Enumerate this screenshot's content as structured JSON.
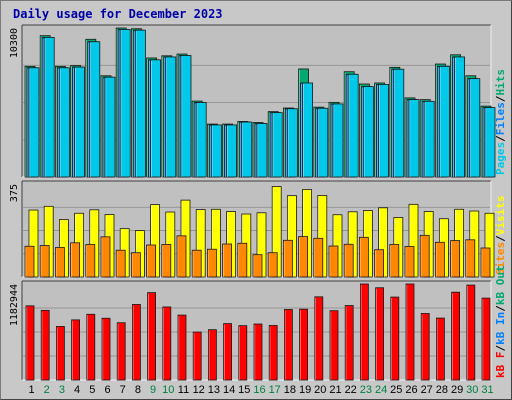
{
  "title": "Daily usage for December 2023",
  "colors": {
    "pages": "#00c8e8",
    "files": "#0080ff",
    "hits": "#00a870",
    "visits": "#ffff00",
    "sites": "#ff8800",
    "kbytes": "#ff0000",
    "weekday_label": "#000000",
    "weekend_label": "#008040",
    "panel_bg": "#c0c0c0"
  },
  "chart_data": [
    {
      "type": "bar",
      "panel": "hits-files-pages",
      "x": [
        "1",
        "2",
        "3",
        "4",
        "5",
        "6",
        "7",
        "8",
        "9",
        "10",
        "11",
        "12",
        "13",
        "14",
        "15",
        "16",
        "17",
        "18",
        "19",
        "20",
        "21",
        "22",
        "23",
        "24",
        "25",
        "26",
        "27",
        "28",
        "29",
        "30",
        "31"
      ],
      "tick_label": "10300",
      "ylim": [
        0,
        10300
      ],
      "legend": [
        "Pages",
        "/",
        "Files",
        "/",
        "Hits"
      ],
      "series": [
        {
          "name": "Hits",
          "values": [
            7650,
            9770,
            7650,
            7700,
            9520,
            7000,
            10300,
            10250,
            8230,
            8380,
            8500,
            5250,
            3660,
            3660,
            3840,
            3770,
            4520,
            4770,
            7470,
            4830,
            5160,
            7280,
            6430,
            6500,
            7580,
            5470,
            5350,
            7810,
            8450,
            7000,
            4900
          ]
        },
        {
          "name": "Files",
          "values": [
            7550,
            9650,
            7550,
            7600,
            9350,
            6900,
            10200,
            10150,
            8100,
            8300,
            8400,
            5150,
            3600,
            3600,
            3800,
            3700,
            4450,
            4720,
            6500,
            4750,
            5050,
            7100,
            6250,
            6400,
            7450,
            5350,
            5230,
            7650,
            8300,
            6800,
            4800
          ]
        },
        {
          "name": "Pages",
          "values": [
            7550,
            9650,
            7550,
            7600,
            9350,
            6900,
            10200,
            10150,
            8100,
            8300,
            8400,
            5150,
            3600,
            3600,
            3800,
            3700,
            4450,
            4720,
            6500,
            4750,
            5050,
            7100,
            6250,
            6400,
            7450,
            5350,
            5230,
            7650,
            8300,
            6800,
            4800
          ]
        }
      ]
    },
    {
      "type": "bar",
      "panel": "visits-sites",
      "x": [
        "1",
        "2",
        "3",
        "4",
        "5",
        "6",
        "7",
        "8",
        "9",
        "10",
        "11",
        "12",
        "13",
        "14",
        "15",
        "16",
        "17",
        "18",
        "19",
        "20",
        "21",
        "22",
        "23",
        "24",
        "25",
        "26",
        "27",
        "28",
        "29",
        "30",
        "31"
      ],
      "tick_label": "375",
      "ylim": [
        0,
        375
      ],
      "legend": [
        "Sites",
        "/",
        "Visits"
      ],
      "series": [
        {
          "name": "Visits",
          "values": [
            270,
            285,
            232,
            257,
            271,
            252,
            195,
            187,
            292,
            262,
            310,
            272,
            273,
            264,
            254,
            259,
            365,
            328,
            353,
            329,
            251,
            263,
            268,
            279,
            240,
            293,
            264,
            235,
            273,
            266,
            257
          ]
        },
        {
          "name": "Sites",
          "values": [
            124,
            127,
            119,
            138,
            131,
            162,
            108,
            98,
            129,
            131,
            166,
            108,
            112,
            133,
            136,
            90,
            98,
            148,
            163,
            156,
            125,
            132,
            160,
            110,
            131,
            123,
            168,
            140,
            147,
            150,
            117
          ]
        }
      ]
    },
    {
      "type": "bar",
      "panel": "kbytes",
      "x": [
        "1",
        "2",
        "3",
        "4",
        "5",
        "6",
        "7",
        "8",
        "9",
        "10",
        "11",
        "12",
        "13",
        "14",
        "15",
        "16",
        "17",
        "18",
        "19",
        "20",
        "21",
        "22",
        "23",
        "24",
        "25",
        "26",
        "27",
        "28",
        "29",
        "30",
        "31"
      ],
      "tick_label": "1182944",
      "ylim": [
        0,
        1182944
      ],
      "legend": [
        "kB F",
        "/",
        "kB In",
        "/",
        "kB Out"
      ],
      "series": [
        {
          "name": "kB F",
          "values": [
            914000,
            858000,
            660000,
            741000,
            810000,
            761000,
            706000,
            931000,
            1077000,
            900000,
            800000,
            591000,
            620000,
            695000,
            670000,
            690000,
            672000,
            869000,
            873000,
            1025000,
            854000,
            918000,
            1182944,
            1137000,
            1022000,
            1182944,
            820000,
            763000,
            1082000,
            1170000,
            1009000
          ]
        }
      ]
    }
  ]
}
